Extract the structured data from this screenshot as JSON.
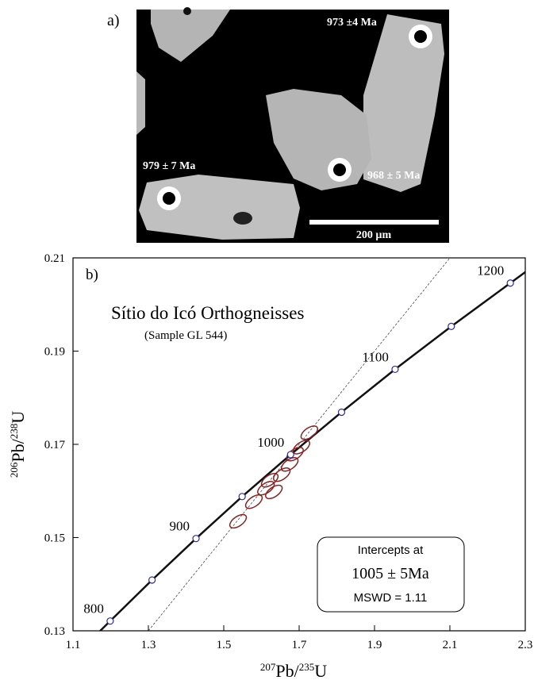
{
  "panel_a": {
    "label": "a)",
    "annotations": [
      "973 ±4 Ma",
      "979 ± 7 Ma",
      "968 ± 5 Ma"
    ],
    "scale_bar": "200 µm"
  },
  "chart_data": {
    "type": "scatter",
    "panel_label": "b)",
    "title": "Sítio do Icó Orthogneisses",
    "subtitle": "(Sample GL 544)",
    "x_label": {
      "sup1": "207",
      "base1": "Pb/",
      "sup2": "235",
      "base2": "U"
    },
    "y_label": {
      "sup1": "206",
      "base1": "Pb/",
      "sup2": "238",
      "base2": "U"
    },
    "xlim": [
      1.1,
      2.3
    ],
    "xticks": [
      1.1,
      1.3,
      1.5,
      1.7,
      1.9,
      2.1,
      2.3
    ],
    "ylim": [
      0.13,
      0.21
    ],
    "yticks": [
      0.13,
      0.15,
      0.17,
      0.19,
      0.21
    ],
    "concordia": {
      "color": "#111111",
      "ages": [
        800,
        850,
        900,
        950,
        1000,
        1050,
        1100,
        1150,
        1200
      ],
      "x": [
        1.1987,
        1.3097,
        1.4264,
        1.5488,
        1.6774,
        1.8125,
        1.9546,
        2.1037,
        2.2604
      ],
      "y": [
        0.1321,
        0.1409,
        0.1498,
        0.1588,
        0.1678,
        0.1769,
        0.1861,
        0.1953,
        0.2046
      ]
    },
    "discordia": {
      "x": [
        1.3,
        2.1
      ],
      "y": [
        0.13,
        0.21
      ]
    },
    "ellipses": {
      "color": "#8b2020",
      "x": [
        1.538,
        1.58,
        1.612,
        1.622,
        1.633,
        1.654,
        1.675,
        1.689,
        1.706,
        1.727
      ],
      "y": [
        0.1535,
        0.1577,
        0.1606,
        0.1623,
        0.1598,
        0.1635,
        0.1657,
        0.1679,
        0.1694,
        0.1725
      ]
    },
    "box": [
      "Intercepts at",
      "1005 ± 5Ma",
      "MSWD = 1.11"
    ]
  }
}
